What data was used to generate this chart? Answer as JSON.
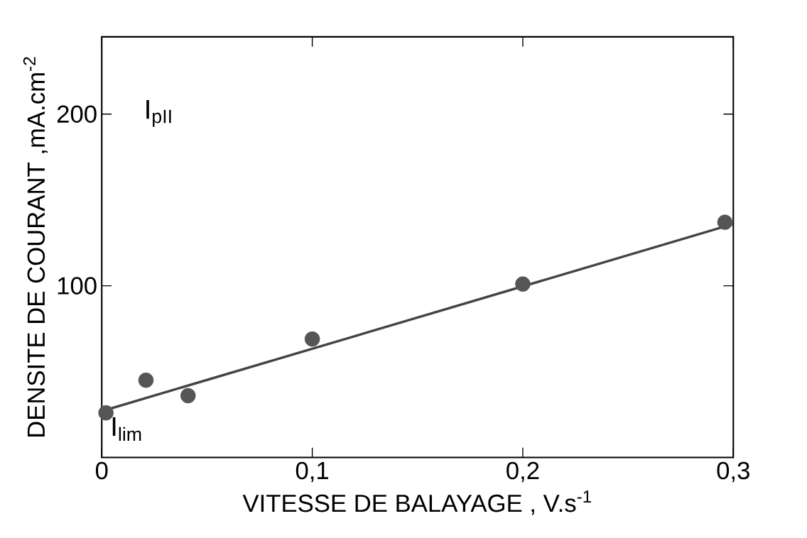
{
  "chart_data": {
    "type": "scatter",
    "xlabel": "VITESSE DE BALAYAGE , V.s$^{-1}$",
    "ylabel": "DENSITE DE COURANT ,mA.cm$^{-2}$",
    "xlim": [
      0,
      0.3
    ],
    "ylim": [
      0,
      245
    ],
    "xticks": [
      0,
      {
        "value": 0.1,
        "label": "0,1"
      },
      {
        "value": 0.2,
        "label": "0,2"
      },
      {
        "value": 0.3,
        "label": "0,3"
      }
    ],
    "yticks": [
      100,
      200
    ],
    "grid": false,
    "series": [
      {
        "marker": "circle",
        "color": "#555555",
        "x": [
          0.002,
          0.021,
          0.041,
          0.1,
          0.2,
          0.296
        ],
        "values": [
          26,
          45,
          36,
          69,
          101,
          137
        ]
      },
      {
        "type": "line",
        "marker": "none",
        "line_style": "solid",
        "color": "#444444",
        "x": [
          0,
          0.3
        ],
        "values": [
          27,
          136
        ]
      }
    ],
    "annotations": [
      "I$_{pII}$",
      {
        "text": "I$_{lim}$",
        "x": 0.002,
        "y": 26
      }
    ]
  }
}
